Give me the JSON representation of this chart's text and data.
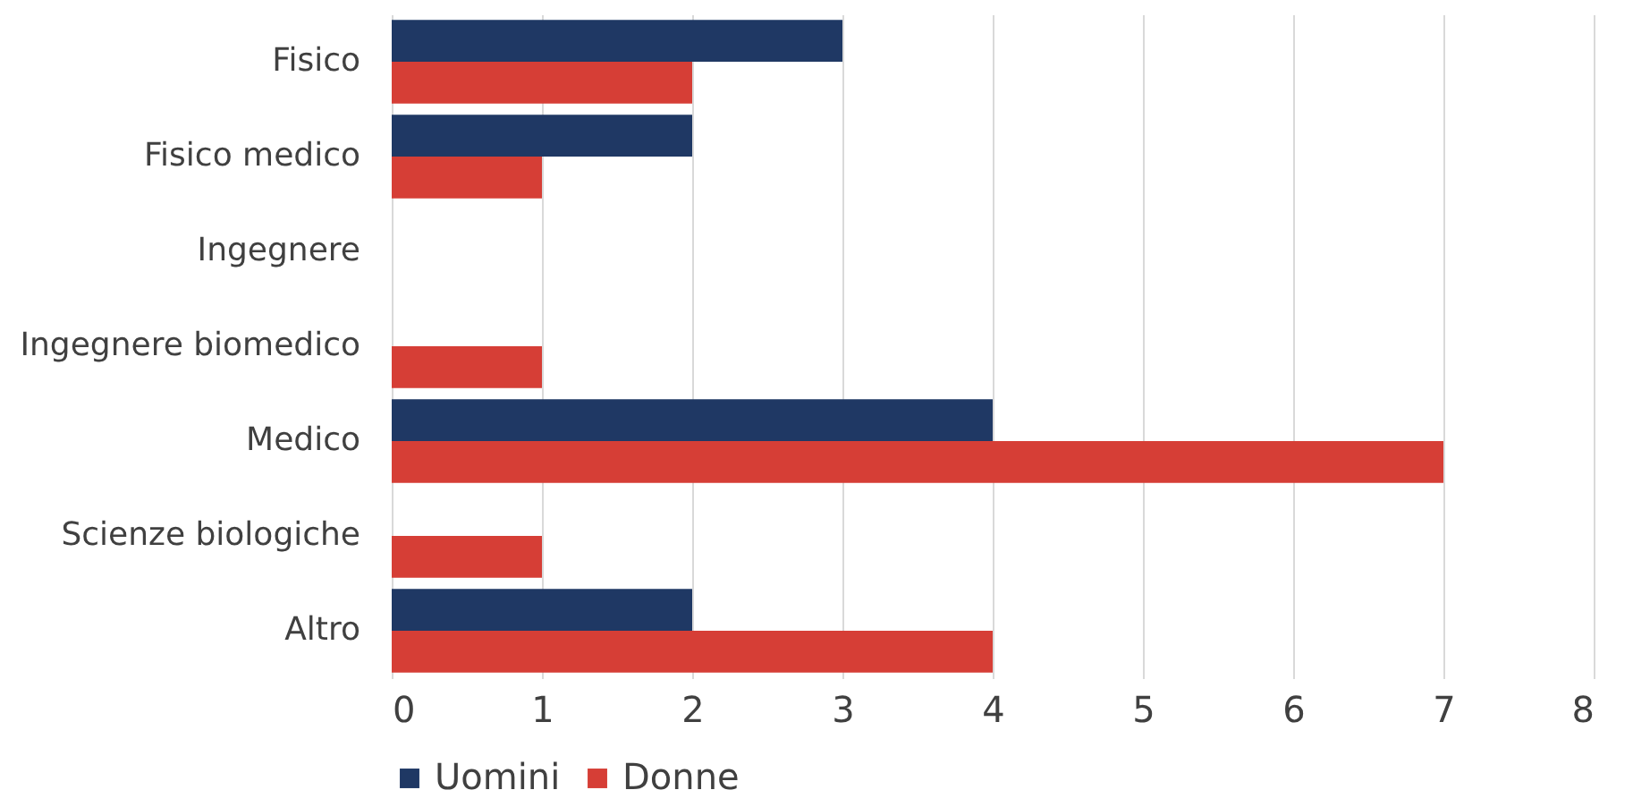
{
  "chart_data": {
    "type": "bar",
    "orientation": "horizontal",
    "categories": [
      "Fisico",
      "Fisico medico",
      "Ingegnere",
      "Ingegnere biomedico",
      "Medico",
      "Scienze biologiche",
      "Altro"
    ],
    "series": [
      {
        "name": "Uomini",
        "color": "#1f3864",
        "values": [
          3,
          2,
          0,
          0,
          4,
          0,
          2
        ]
      },
      {
        "name": "Donne",
        "color": "#d63e36",
        "values": [
          2,
          1,
          0,
          1,
          7,
          1,
          4
        ]
      }
    ],
    "xlim": [
      0,
      8
    ],
    "xticks": [
      0,
      1,
      2,
      3,
      4,
      5,
      6,
      7,
      8
    ],
    "grid": "x",
    "legend": "bottom"
  }
}
